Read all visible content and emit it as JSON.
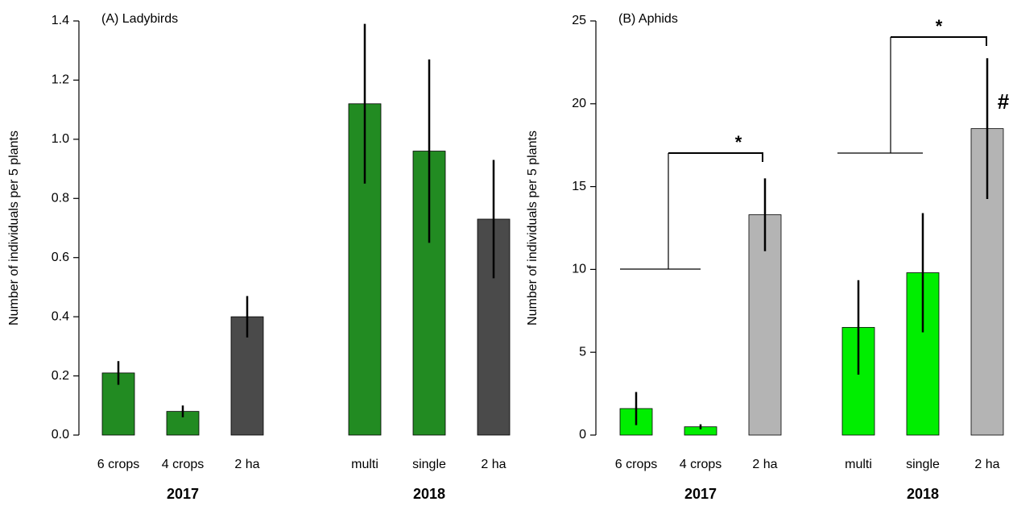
{
  "chart_data": [
    {
      "type": "bar",
      "title": "(A) Ladybirds",
      "ylabel": "Number of individuals per 5 plants",
      "categories": [
        "6 crops",
        "4 crops",
        "2 ha",
        "multi",
        "single",
        "2 ha"
      ],
      "groups": [
        "2017",
        "2018"
      ],
      "values": [
        0.21,
        0.08,
        0.4,
        1.12,
        0.96,
        0.73
      ],
      "errors": [
        0.04,
        0.02,
        0.07,
        0.27,
        0.31,
        0.2
      ],
      "colors": [
        "#228b22",
        "#228b22",
        "#4a4a4a",
        "#228b22",
        "#228b22",
        "#4a4a4a"
      ],
      "ylim": [
        0,
        1.4
      ],
      "yticks": [
        {
          "value": 0,
          "label": "0.0"
        },
        0.2,
        0.4,
        0.6,
        0.8,
        {
          "value": 1,
          "label": "1.0"
        },
        1.2,
        1.4
      ]
    },
    {
      "type": "bar",
      "title": "(B) Aphids",
      "ylabel": "Number of individuals per 5 plants",
      "categories": [
        "6 crops",
        "4 crops",
        "2 ha",
        "multi",
        "single",
        "2 ha"
      ],
      "groups": [
        "2017",
        "2018"
      ],
      "values": [
        1.6,
        0.5,
        13.3,
        6.5,
        9.8,
        18.5
      ],
      "errors": [
        1.0,
        0.15,
        2.2,
        2.85,
        3.6,
        4.25
      ],
      "colors": [
        "#00ee00",
        "#00ee00",
        "#b4b4b4",
        "#00ee00",
        "#00ee00",
        "#b4b4b4"
      ],
      "ylim": [
        0,
        25
      ],
      "yticks": [
        0,
        5,
        10,
        15,
        20,
        25
      ],
      "annotations": [
        "*",
        "*",
        "#"
      ]
    }
  ]
}
